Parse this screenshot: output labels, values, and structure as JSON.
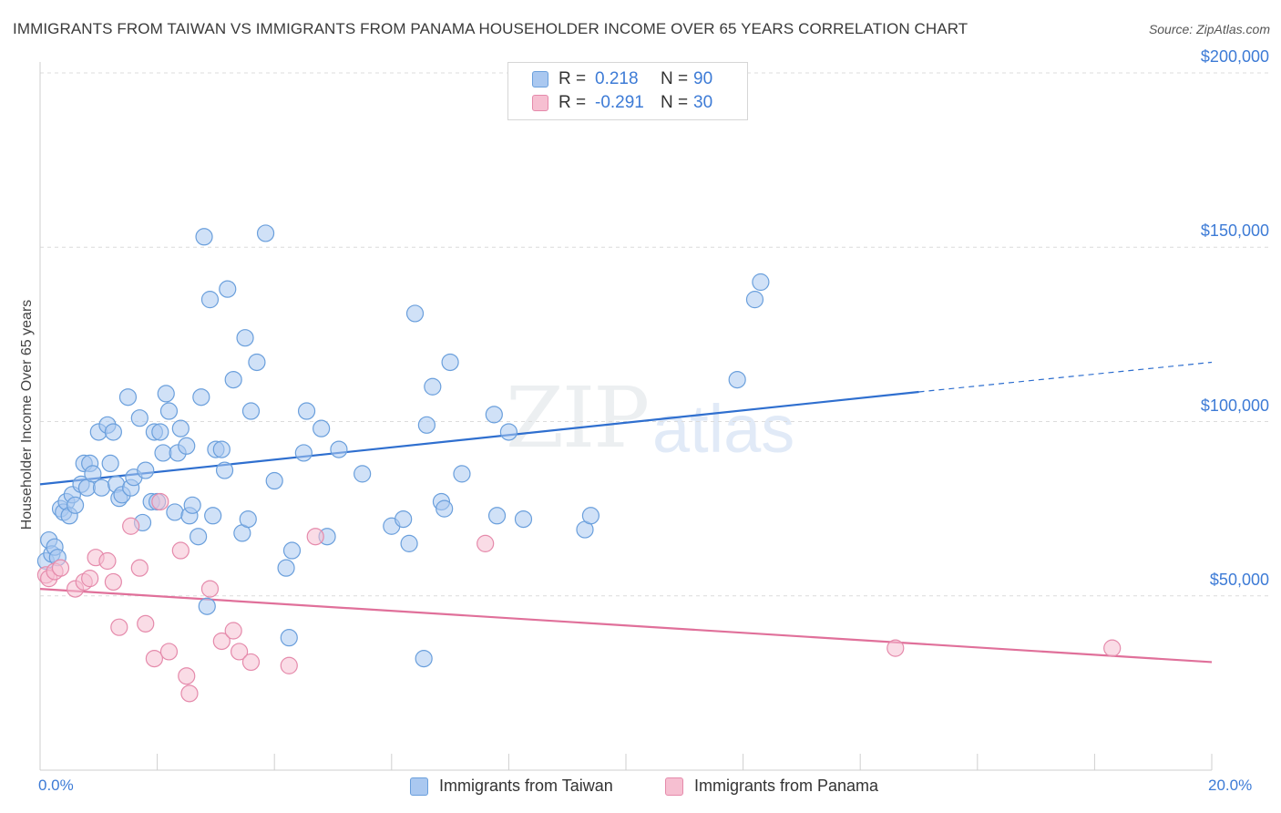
{
  "header": {
    "title": "IMMIGRANTS FROM TAIWAN VS IMMIGRANTS FROM PANAMA HOUSEHOLDER INCOME OVER 65 YEARS CORRELATION CHART",
    "source": "Source: ZipAtlas.com"
  },
  "watermark": {
    "zip": "ZIP",
    "atlas": "atlas"
  },
  "legend": {
    "taiwan": {
      "r_label": "R =",
      "r_value": "0.218",
      "n_label": "N =",
      "n_value": "90"
    },
    "panama": {
      "r_label": "R =",
      "r_value": "-0.291",
      "n_label": "N =",
      "n_value": "30"
    }
  },
  "colors": {
    "taiwan_fill": "#aac8f0",
    "taiwan_stroke": "#6a9fdc",
    "taiwan_line": "#2f6fcf",
    "panama_fill": "#f6bfd1",
    "panama_stroke": "#e58aab",
    "panama_line": "#e0709a",
    "axis_text": "#3d7bd6"
  },
  "chart_data": {
    "type": "scatter",
    "title": "IMMIGRANTS FROM TAIWAN VS IMMIGRANTS FROM PANAMA HOUSEHOLDER INCOME OVER 65 YEARS CORRELATION CHART",
    "xlabel": "",
    "ylabel": "Householder Income Over 65 years",
    "xlim": [
      0,
      20
    ],
    "ylim": [
      0,
      200000
    ],
    "x_tick_labels": [
      "0.0%",
      "20.0%"
    ],
    "y_ticks": [
      {
        "value": 50000,
        "label": "$50,000"
      },
      {
        "value": 100000,
        "label": "$100,000"
      },
      {
        "value": 150000,
        "label": "$150,000"
      },
      {
        "value": 200000,
        "label": "$200,000"
      }
    ],
    "grid": true,
    "legend_position": "top-center",
    "series": [
      {
        "name": "Immigrants from Taiwan",
        "points": [
          [
            0.1,
            60000
          ],
          [
            0.15,
            66000
          ],
          [
            0.2,
            62000
          ],
          [
            0.25,
            64000
          ],
          [
            0.3,
            61000
          ],
          [
            0.35,
            75000
          ],
          [
            0.4,
            74000
          ],
          [
            0.45,
            77000
          ],
          [
            0.5,
            73000
          ],
          [
            0.55,
            79000
          ],
          [
            0.6,
            76000
          ],
          [
            0.7,
            82000
          ],
          [
            0.75,
            88000
          ],
          [
            0.8,
            81000
          ],
          [
            0.85,
            88000
          ],
          [
            0.9,
            85000
          ],
          [
            1.0,
            97000
          ],
          [
            1.05,
            81000
          ],
          [
            1.15,
            99000
          ],
          [
            1.2,
            88000
          ],
          [
            1.25,
            97000
          ],
          [
            1.3,
            82000
          ],
          [
            1.35,
            78000
          ],
          [
            1.4,
            79000
          ],
          [
            1.5,
            107000
          ],
          [
            1.55,
            81000
          ],
          [
            1.6,
            84000
          ],
          [
            1.7,
            101000
          ],
          [
            1.75,
            71000
          ],
          [
            1.8,
            86000
          ],
          [
            1.9,
            77000
          ],
          [
            1.95,
            97000
          ],
          [
            2.0,
            77000
          ],
          [
            2.05,
            97000
          ],
          [
            2.1,
            91000
          ],
          [
            2.15,
            108000
          ],
          [
            2.2,
            103000
          ],
          [
            2.3,
            74000
          ],
          [
            2.35,
            91000
          ],
          [
            2.4,
            98000
          ],
          [
            2.5,
            93000
          ],
          [
            2.55,
            73000
          ],
          [
            2.6,
            76000
          ],
          [
            2.7,
            67000
          ],
          [
            2.75,
            107000
          ],
          [
            2.8,
            153000
          ],
          [
            2.85,
            47000
          ],
          [
            2.9,
            135000
          ],
          [
            2.95,
            73000
          ],
          [
            3.0,
            92000
          ],
          [
            3.1,
            92000
          ],
          [
            3.15,
            86000
          ],
          [
            3.2,
            138000
          ],
          [
            3.3,
            112000
          ],
          [
            3.45,
            68000
          ],
          [
            3.5,
            124000
          ],
          [
            3.55,
            72000
          ],
          [
            3.6,
            103000
          ],
          [
            3.7,
            117000
          ],
          [
            3.85,
            154000
          ],
          [
            4.0,
            83000
          ],
          [
            4.2,
            58000
          ],
          [
            4.3,
            63000
          ],
          [
            4.25,
            38000
          ],
          [
            4.5,
            91000
          ],
          [
            4.55,
            103000
          ],
          [
            4.8,
            98000
          ],
          [
            4.9,
            67000
          ],
          [
            5.1,
            92000
          ],
          [
            5.5,
            85000
          ],
          [
            6.0,
            70000
          ],
          [
            6.2,
            72000
          ],
          [
            6.3,
            65000
          ],
          [
            6.4,
            131000
          ],
          [
            6.6,
            99000
          ],
          [
            6.55,
            32000
          ],
          [
            6.7,
            110000
          ],
          [
            6.85,
            77000
          ],
          [
            6.9,
            75000
          ],
          [
            7.0,
            117000
          ],
          [
            7.2,
            85000
          ],
          [
            7.75,
            102000
          ],
          [
            7.8,
            73000
          ],
          [
            8.0,
            97000
          ],
          [
            8.25,
            72000
          ],
          [
            9.3,
            69000
          ],
          [
            9.4,
            73000
          ],
          [
            11.9,
            112000
          ],
          [
            12.2,
            135000
          ],
          [
            12.3,
            140000
          ]
        ],
        "trend": {
          "x": [
            0,
            15
          ],
          "y": [
            82000,
            108500
          ],
          "dashed_extension_to_x": 20,
          "dashed_extension_y": 117000
        }
      },
      {
        "name": "Immigrants from Panama",
        "points": [
          [
            0.1,
            56000
          ],
          [
            0.15,
            55000
          ],
          [
            0.25,
            57000
          ],
          [
            0.35,
            58000
          ],
          [
            0.6,
            52000
          ],
          [
            0.75,
            54000
          ],
          [
            0.85,
            55000
          ],
          [
            0.95,
            61000
          ],
          [
            1.15,
            60000
          ],
          [
            1.25,
            54000
          ],
          [
            1.35,
            41000
          ],
          [
            1.55,
            70000
          ],
          [
            1.7,
            58000
          ],
          [
            1.8,
            42000
          ],
          [
            1.95,
            32000
          ],
          [
            2.05,
            77000
          ],
          [
            2.2,
            34000
          ],
          [
            2.4,
            63000
          ],
          [
            2.5,
            27000
          ],
          [
            2.55,
            22000
          ],
          [
            2.9,
            52000
          ],
          [
            3.1,
            37000
          ],
          [
            3.3,
            40000
          ],
          [
            3.4,
            34000
          ],
          [
            3.6,
            31000
          ],
          [
            4.25,
            30000
          ],
          [
            4.7,
            67000
          ],
          [
            7.6,
            65000
          ],
          [
            14.6,
            35000
          ],
          [
            18.3,
            35000
          ]
        ],
        "trend": {
          "x": [
            0,
            20
          ],
          "y": [
            52000,
            31000
          ]
        }
      }
    ]
  },
  "bottom_legend": {
    "taiwan_label": "Immigrants from Taiwan",
    "panama_label": "Immigrants from Panama"
  }
}
